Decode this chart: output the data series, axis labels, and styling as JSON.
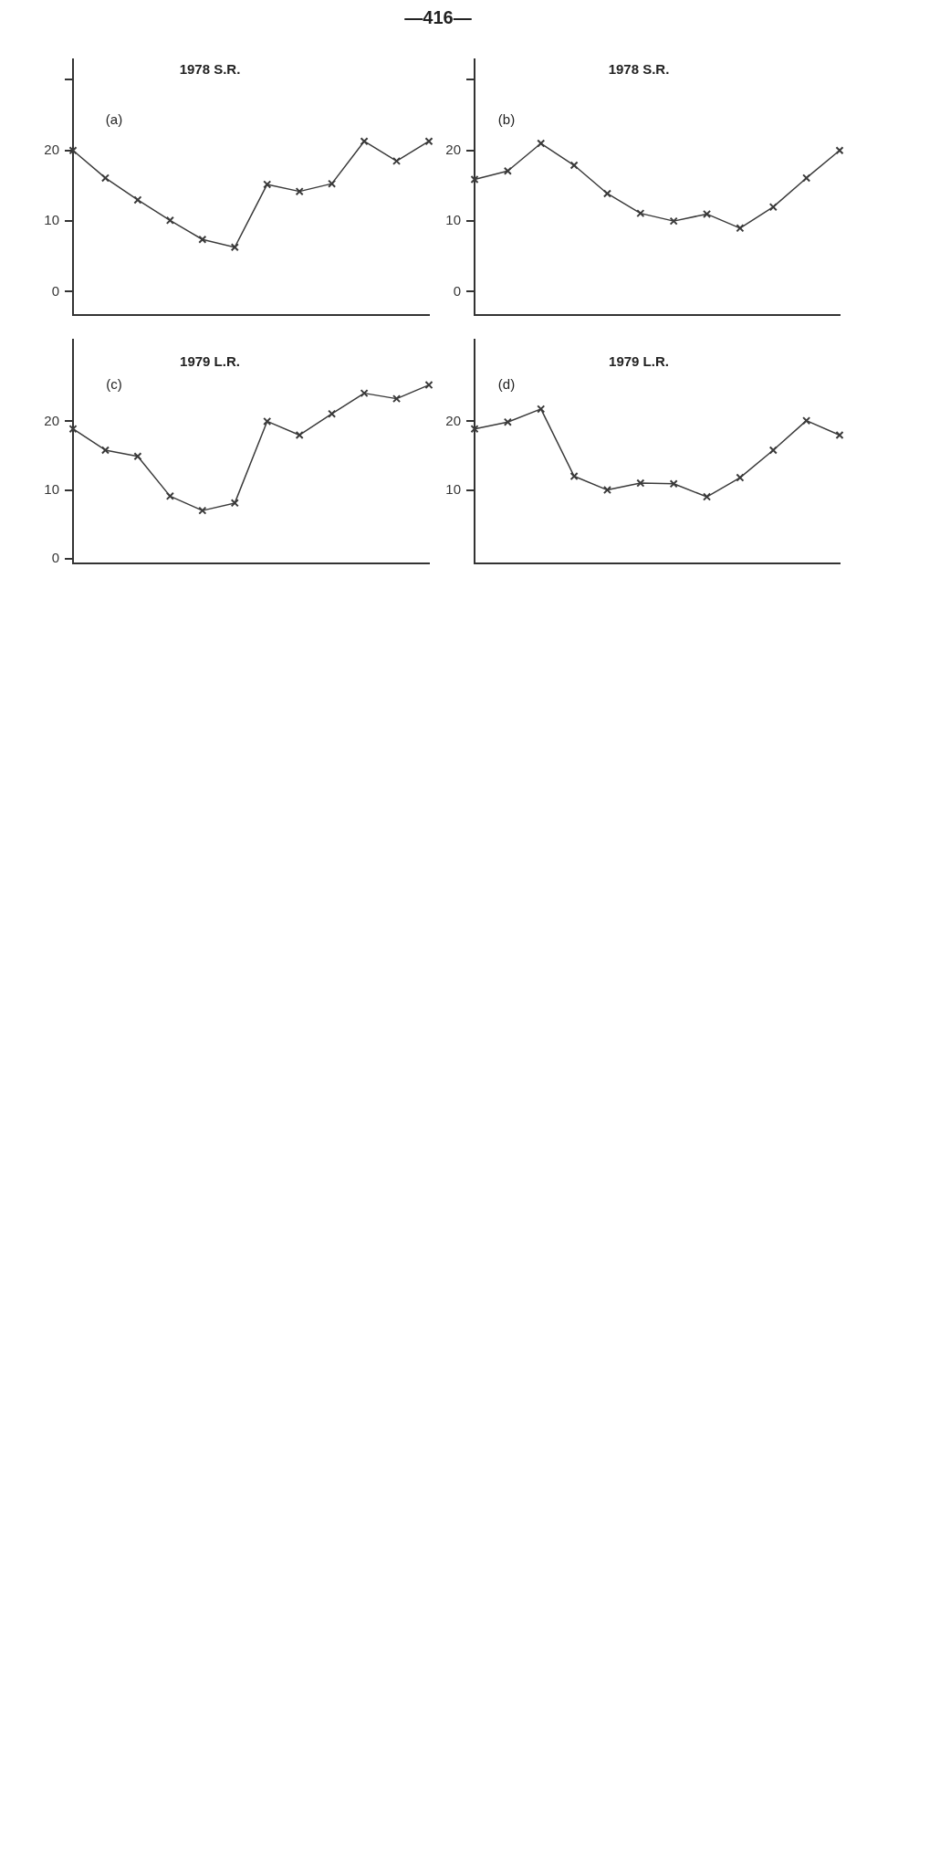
{
  "chart_data": [
    {
      "type": "line",
      "title": "1978 S.R.",
      "subtitle": "(a)",
      "annotations": [
        "—416—"
      ],
      "categories": [
        null,
        null,
        null,
        null,
        null,
        null,
        null,
        null,
        null,
        null,
        null,
        null
      ],
      "series": [
        {
          "color": "#3a3a3a",
          "values": [
            20,
            16.1,
            13,
            10.1,
            7.4,
            6.3,
            15.2,
            14.2,
            15.3,
            21.3,
            18.5,
            21.3
          ]
        }
      ],
      "ylim": [
        -3.3,
        32.9
      ],
      "yticks": [
        0,
        10,
        20,
        {
          "value": 30,
          "label": null
        }
      ],
      "tick_labels": "y",
      "marker": "cross",
      "line_style": "solid"
    },
    {
      "type": "line",
      "title": "1978 S.R.",
      "subtitle": "(b)",
      "categories": [
        null,
        null,
        null,
        null,
        null,
        null,
        null,
        null,
        null,
        null,
        null,
        null
      ],
      "series": [
        {
          "color": "#3a3a3a",
          "values": [
            15.9,
            17.1,
            21,
            17.9,
            13.9,
            11.1,
            10,
            11,
            9,
            12,
            16.1,
            20
          ]
        }
      ],
      "ylim": [
        -3.3,
        32.9
      ],
      "yticks": [
        0,
        10,
        20,
        {
          "value": 30,
          "label": null
        }
      ],
      "tick_labels": "y",
      "marker": "cross",
      "line_style": "solid"
    },
    {
      "type": "line",
      "title": "1979 L.R.",
      "subtitle": "(c)",
      "categories": [
        null,
        null,
        null,
        null,
        null,
        null,
        null,
        null,
        null,
        null,
        null,
        null
      ],
      "series": [
        {
          "color": "#3a3a3a",
          "values": [
            18.9,
            15.8,
            14.9,
            9.1,
            7,
            8.1,
            20,
            18,
            21.1,
            24.1,
            23.3,
            25.3
          ]
        }
      ],
      "ylim": [
        -0.7,
        31.9
      ],
      "yticks": [
        0,
        10,
        20
      ],
      "tick_labels": "y",
      "marker": "cross",
      "line_style": "solid"
    },
    {
      "type": "line",
      "title": "1979 L.R.",
      "subtitle": "(d)",
      "categories": [
        null,
        null,
        null,
        null,
        null,
        null,
        null,
        null,
        null,
        null,
        null,
        null
      ],
      "series": [
        {
          "color": "#3a3a3a",
          "values": [
            18.9,
            19.9,
            21.8,
            12,
            10,
            11,
            10.9,
            9,
            11.8,
            15.8,
            20.1,
            18
          ]
        }
      ],
      "ylim": [
        -0.7,
        31.9
      ],
      "yticks": [
        10,
        20
      ],
      "tick_labels": "y",
      "marker": "cross",
      "line_style": "solid"
    }
  ]
}
